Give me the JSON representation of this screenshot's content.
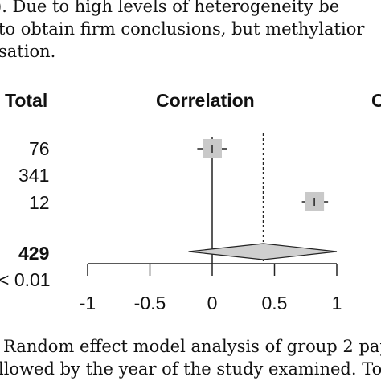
{
  "text_above": {
    "line1": "). Due to high levels of heterogeneity be",
    "line2": "to obtain firm conclusions, but methylatior",
    "line3": "sation."
  },
  "plot": {
    "headers": {
      "total": "Total",
      "correlation": "Correlation",
      "right_partial": "C"
    },
    "rows": [
      {
        "total": "76",
        "estimate": 0.0,
        "ci": [
          -0.12,
          0.12
        ],
        "has_box": true
      },
      {
        "total": "341",
        "has_box": false
      },
      {
        "total": "12",
        "estimate": 0.82,
        "ci": [
          0.72,
          0.93
        ],
        "has_box": true
      }
    ],
    "summary": {
      "total": "429",
      "estimate": 0.41,
      "ci": [
        -0.19,
        1.0
      ]
    },
    "p_value": "< 0.01",
    "reference_line": 0.41,
    "axis": {
      "ticks": [
        -1,
        -0.5,
        0,
        0.5,
        1
      ],
      "tick_labels": [
        "-1",
        "-0.5",
        "0",
        "0.5",
        "1"
      ],
      "range": [
        -1,
        1
      ]
    }
  },
  "caption": {
    "line1": "Random effect model analysis of group 2 pap",
    "line2": "llowed by the year of the study examined. To"
  },
  "colors": {
    "box": "#c9c9c9",
    "diamond": "#cfcfcf",
    "text": "#111111"
  }
}
